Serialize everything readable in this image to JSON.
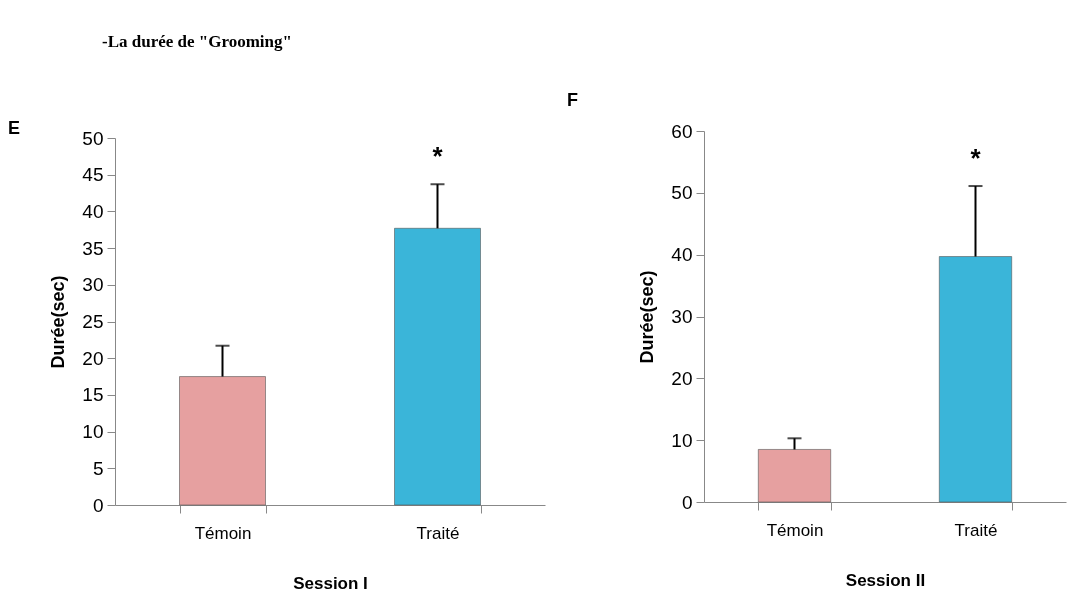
{
  "chart_data": [
    {
      "type": "bar",
      "title": "-La durée de \"Grooming\"",
      "xlabel": "Session I",
      "ylabel": "Durée(sec)",
      "categories": [
        "Témoin",
        "Traité"
      ],
      "values": [
        17.5,
        37.7
      ],
      "errors": [
        [
          17.5,
          21.7
        ],
        [
          37.7,
          43.7
        ]
      ],
      "colors": [
        "#e6a0a0",
        "#3ab5d9"
      ],
      "ylim": [
        0,
        50
      ],
      "yticks": [
        0,
        5,
        10,
        15,
        20,
        25,
        30,
        35,
        40,
        45,
        50
      ],
      "annotations": [
        "E",
        "*"
      ]
    },
    {
      "type": "bar",
      "xlabel": "Session II",
      "ylabel": "Durée(sec)",
      "categories": [
        "Témoin",
        "Traité"
      ],
      "values": [
        8.5,
        39.7
      ],
      "errors": [
        [
          8.5,
          10.3
        ],
        [
          39.7,
          51.1
        ]
      ],
      "colors": [
        "#e6a0a0",
        "#3ab5d9"
      ],
      "ylim": [
        0,
        60
      ],
      "yticks": [
        0,
        10,
        20,
        30,
        40,
        50,
        60
      ],
      "annotations": [
        "F",
        "*"
      ]
    }
  ]
}
